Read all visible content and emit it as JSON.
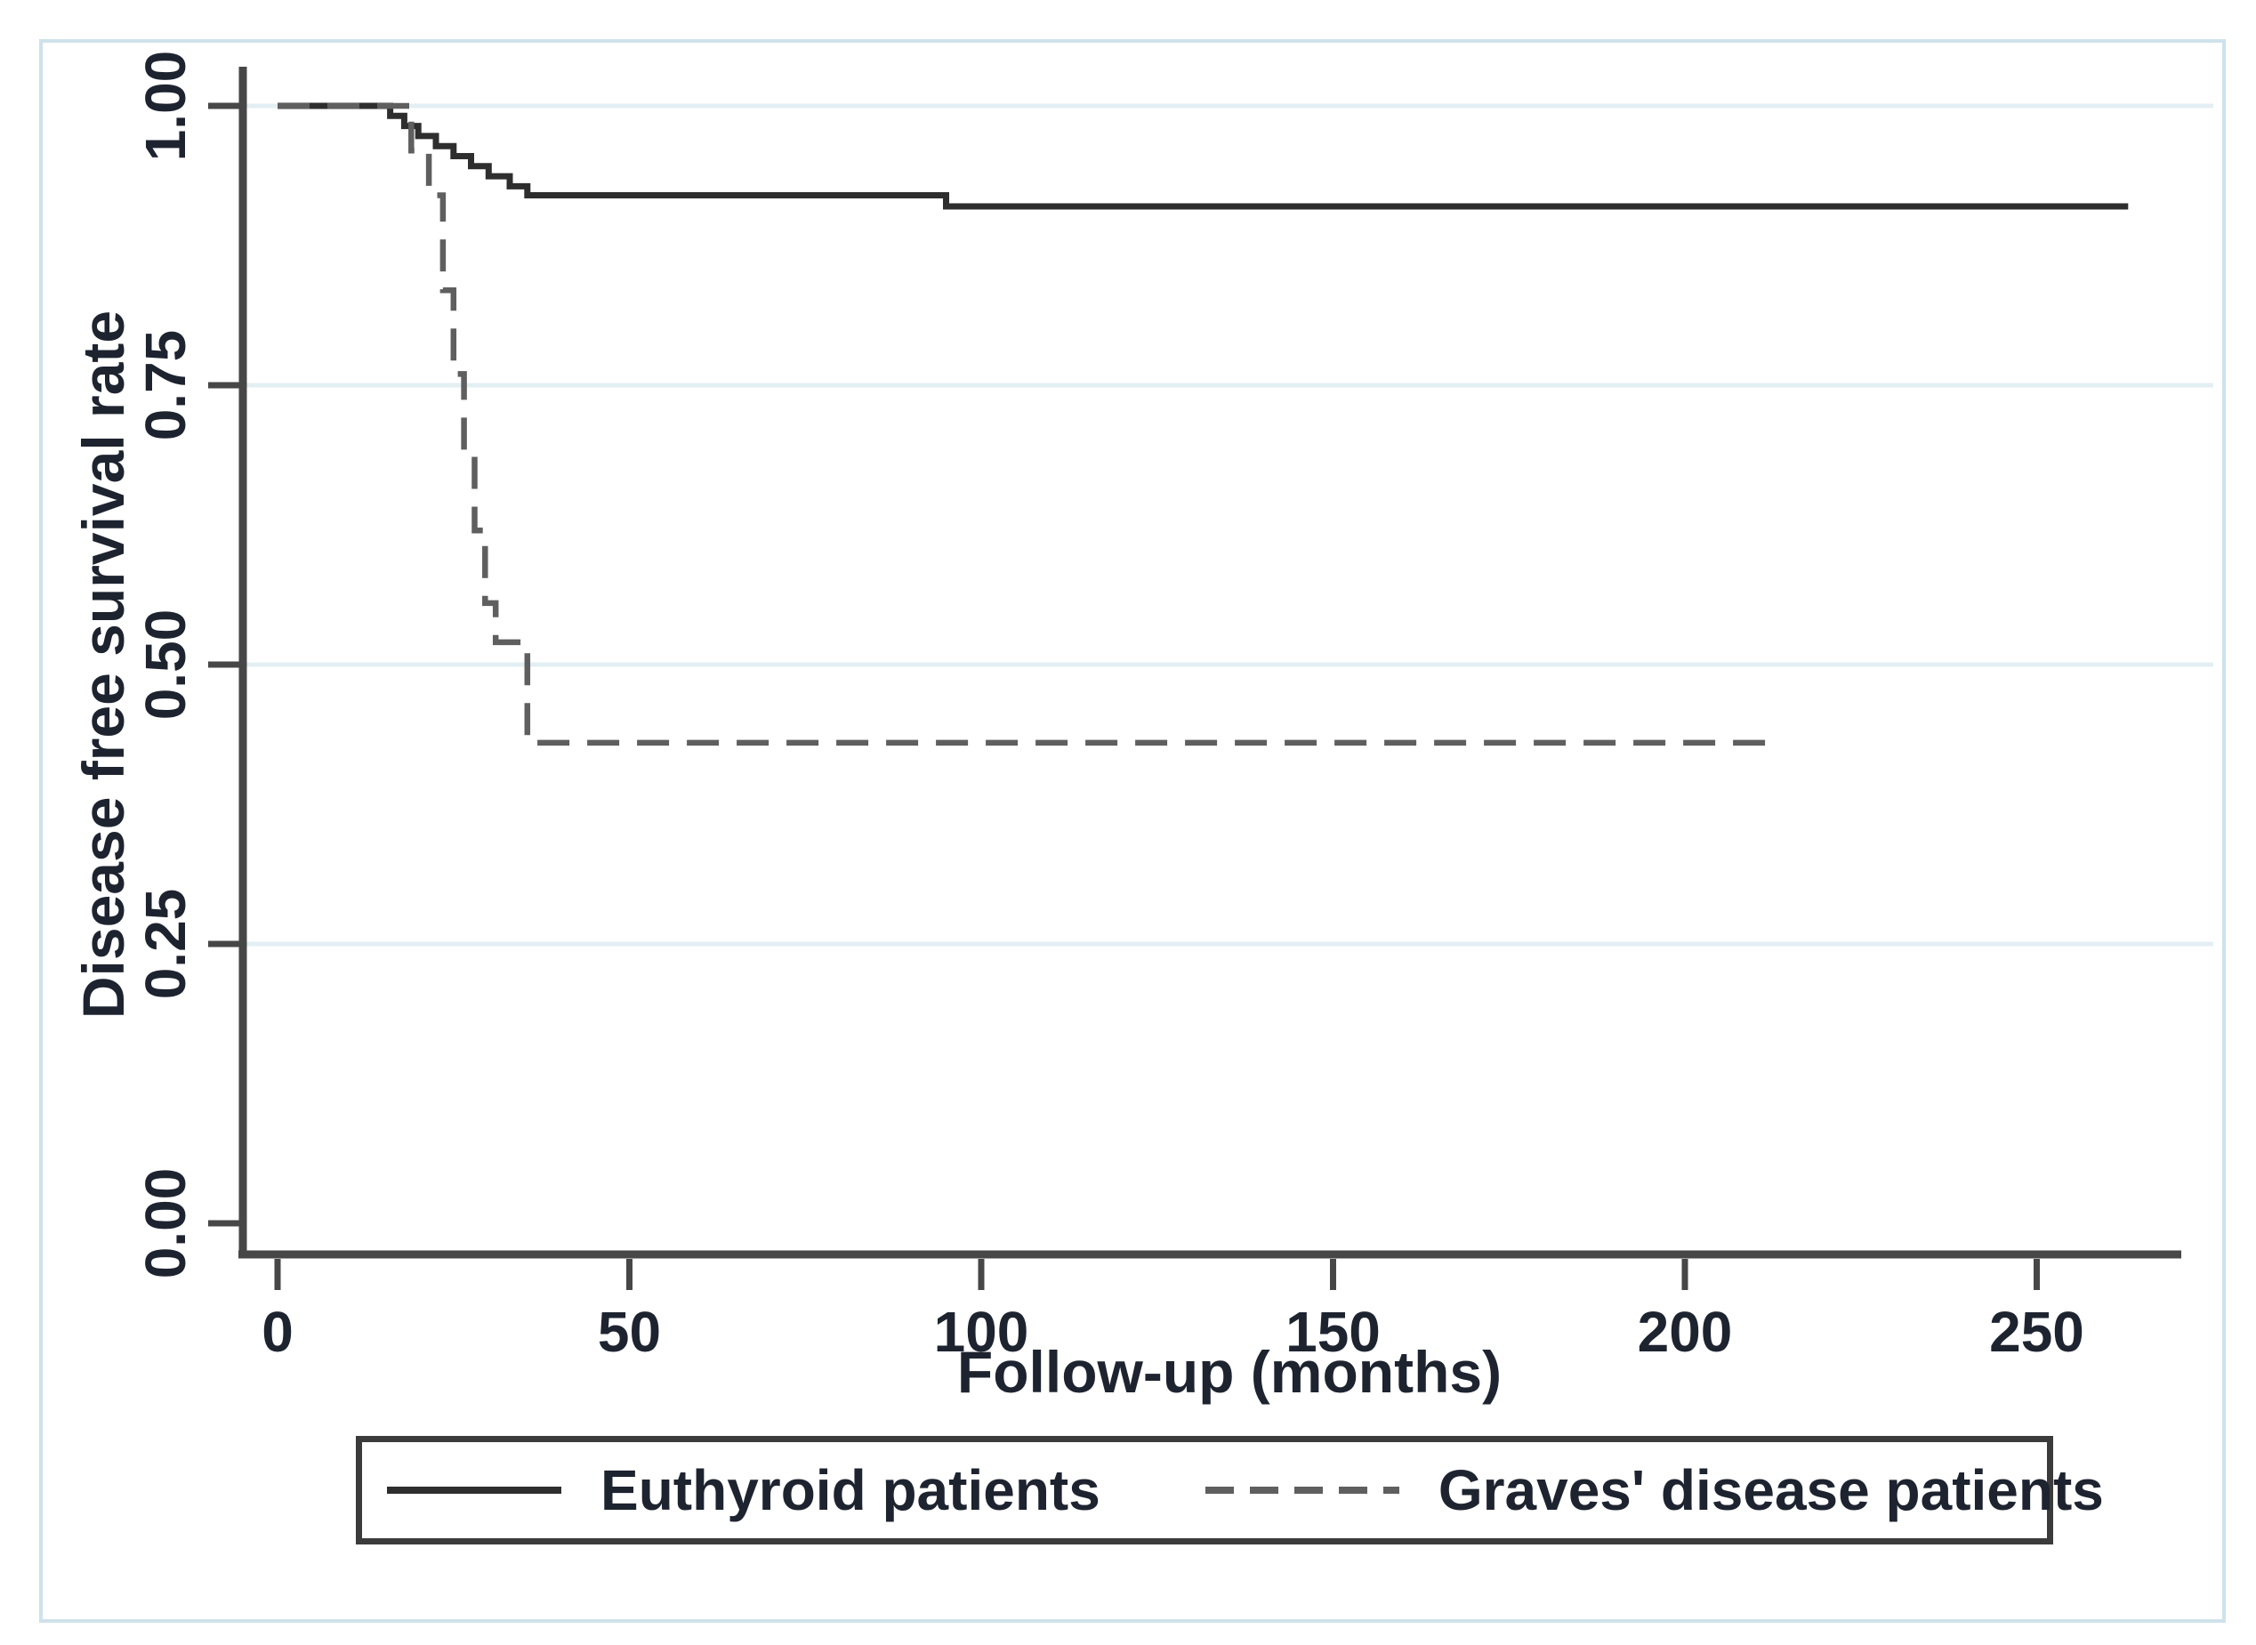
{
  "figure": {
    "background": "#ffffff",
    "frame_color": "#cfe2eb"
  },
  "chart_data": {
    "type": "line",
    "subtype": "kaplan_meier_step",
    "title": "",
    "xlabel": "Follow-up (months)",
    "ylabel": "Disease free survival rate",
    "xlim": [
      0,
      270
    ],
    "ylim": [
      0,
      1
    ],
    "x_ticks": [
      0,
      50,
      100,
      150,
      200,
      250
    ],
    "y_ticks": [
      0,
      0.25,
      0.5,
      0.75,
      1
    ],
    "y_tick_labels": [
      "0.00",
      "0.25",
      "0.50",
      "0.75",
      "1.00"
    ],
    "grid": {
      "horizontal_at": [
        0.25,
        0.5,
        0.75,
        1.0
      ],
      "color": "#e3eff3"
    },
    "axis_color": "#474747",
    "legend_position": "bottom-boxed",
    "series": [
      {
        "name": "Euthyroid patients",
        "line_style": "solid",
        "color": "#2e2e2e",
        "points": [
          [
            0,
            1.0
          ],
          [
            16,
            1.0
          ],
          [
            16,
            0.991
          ],
          [
            18,
            0.991
          ],
          [
            18,
            0.982
          ],
          [
            20,
            0.982
          ],
          [
            20,
            0.973
          ],
          [
            22.5,
            0.973
          ],
          [
            22.5,
            0.964
          ],
          [
            25,
            0.964
          ],
          [
            25,
            0.955
          ],
          [
            27.5,
            0.955
          ],
          [
            27.5,
            0.946
          ],
          [
            30,
            0.946
          ],
          [
            30,
            0.937
          ],
          [
            33,
            0.937
          ],
          [
            33,
            0.928
          ],
          [
            35.5,
            0.928
          ],
          [
            35.5,
            0.92
          ],
          [
            95,
            0.92
          ],
          [
            95,
            0.91
          ],
          [
            263,
            0.91
          ]
        ]
      },
      {
        "name": "Graves' disease patients",
        "line_style": "dashed",
        "color": "#5f5f5f",
        "points": [
          [
            0,
            1.0
          ],
          [
            19,
            1.0
          ],
          [
            19,
            0.96
          ],
          [
            21.5,
            0.96
          ],
          [
            21.5,
            0.92
          ],
          [
            23.5,
            0.92
          ],
          [
            23.5,
            0.835
          ],
          [
            25,
            0.835
          ],
          [
            25,
            0.76
          ],
          [
            26.5,
            0.76
          ],
          [
            26.5,
            0.69
          ],
          [
            28,
            0.69
          ],
          [
            28,
            0.62
          ],
          [
            29.5,
            0.62
          ],
          [
            29.5,
            0.555
          ],
          [
            31,
            0.555
          ],
          [
            31,
            0.52
          ],
          [
            35.5,
            0.52
          ],
          [
            35.5,
            0.43
          ],
          [
            212,
            0.43
          ]
        ]
      }
    ]
  },
  "legend": {
    "items": [
      {
        "label": "Euthyroid patients",
        "line_style": "solid"
      },
      {
        "label": "Graves' disease patients",
        "line_style": "dashed"
      }
    ]
  }
}
